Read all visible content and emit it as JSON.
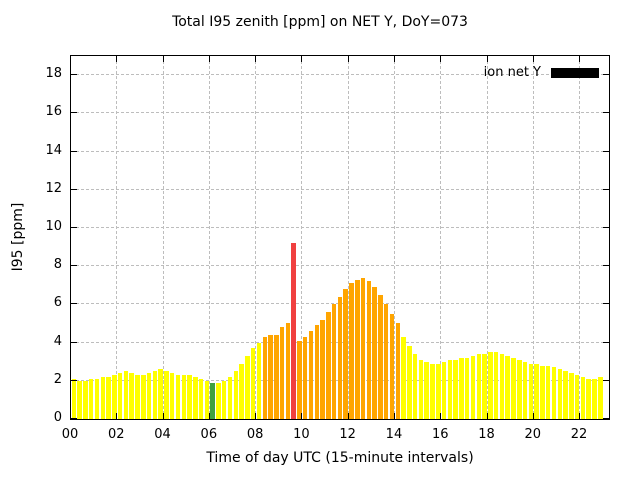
{
  "title": "Total I95 zenith [ppm] on NET Y, DoY=073",
  "legend": {
    "label": "ion net Y",
    "swatch_color": "#000000"
  },
  "axes": {
    "ylabel": "I95 [ppm]",
    "xlabel": "Time of day UTC (15-minute intervals)",
    "y_tick_values": [
      0,
      2,
      4,
      6,
      8,
      10,
      12,
      14,
      16,
      18
    ],
    "x_tick_hours": [
      0,
      2,
      4,
      6,
      8,
      10,
      12,
      14,
      16,
      18,
      20,
      22
    ],
    "x_tick_labels": [
      "00",
      "02",
      "04",
      "06",
      "08",
      "10",
      "12",
      "14",
      "16",
      "18",
      "20",
      "22"
    ]
  },
  "chart_data": {
    "type": "bar",
    "title": "Total I95 zenith [ppm] on NET Y, DoY=073",
    "xlabel": "Time of day UTC (15-minute intervals)",
    "ylabel": "I95 [ppm]",
    "legend_position": "top-right inside plot",
    "grid": "dashed",
    "ylim": [
      0,
      19
    ],
    "xlim": [
      0,
      23.25
    ],
    "x_start_hour": 0,
    "x_step_hours": 0.25,
    "series_name": "ion net Y",
    "colors": {
      "y": "#ffff00",
      "o": "#ffa500",
      "g": "#40a040",
      "r": "#f04040"
    },
    "color_codes": "yyyyyyyyyyyyyyyyyyyyyyyygyyyyyyyyooooorooooooooooooooooooyyyyyyyyyyyyyyyyyyyyyyyyyyyyyyyyyyy",
    "values": [
      2.1,
      2.0,
      2.0,
      2.1,
      2.1,
      2.2,
      2.2,
      2.3,
      2.4,
      2.5,
      2.4,
      2.3,
      2.3,
      2.4,
      2.5,
      2.6,
      2.5,
      2.4,
      2.3,
      2.3,
      2.3,
      2.2,
      2.1,
      2.0,
      1.9,
      1.9,
      2.0,
      2.2,
      2.5,
      2.9,
      3.3,
      3.7,
      4.0,
      4.3,
      4.4,
      4.4,
      4.8,
      5.0,
      9.2,
      4.1,
      4.3,
      4.6,
      4.9,
      5.2,
      5.6,
      6.0,
      6.4,
      6.8,
      7.1,
      7.3,
      7.4,
      7.2,
      6.9,
      6.5,
      6.0,
      5.5,
      5.0,
      4.3,
      3.8,
      3.4,
      3.1,
      3.0,
      2.9,
      2.9,
      3.0,
      3.1,
      3.1,
      3.2,
      3.2,
      3.3,
      3.4,
      3.4,
      3.5,
      3.5,
      3.4,
      3.3,
      3.2,
      3.1,
      3.0,
      2.9,
      2.9,
      2.8,
      2.8,
      2.7,
      2.6,
      2.5,
      2.4,
      2.3,
      2.2,
      2.1,
      2.1,
      2.2
    ]
  }
}
